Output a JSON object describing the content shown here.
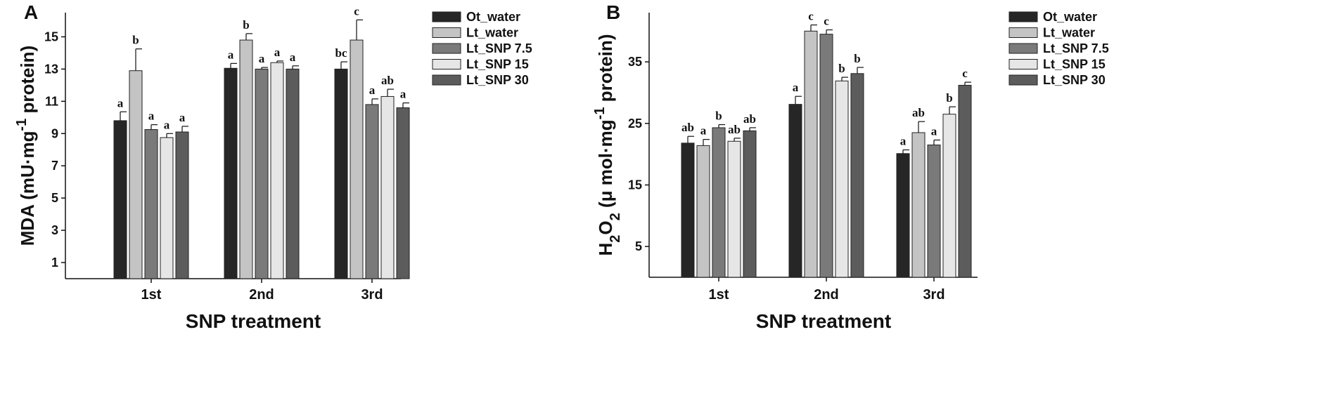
{
  "chart_data": [
    {
      "type": "bar",
      "panel_label": "A",
      "ylabel_parts": {
        "pre": "MDA (mU·mg",
        "sup": "-1",
        "post": " protein)"
      },
      "xlabel": "SNP treatment",
      "ylim": [
        0,
        16.5
      ],
      "yticks": [
        1,
        3,
        5,
        7,
        9,
        11,
        13,
        15
      ],
      "categories": [
        "1st",
        "2nd",
        "3rd"
      ],
      "series": [
        {
          "name": "Ot_water",
          "color": "#262626",
          "values": [
            9.8,
            13.05,
            13.0
          ],
          "errors": [
            0.55,
            0.3,
            0.45
          ],
          "letters": [
            "a",
            "a",
            "bc"
          ]
        },
        {
          "name": "Lt_water",
          "color": "#c4c4c4",
          "values": [
            12.9,
            14.8,
            14.8
          ],
          "errors": [
            1.35,
            0.4,
            1.25
          ],
          "letters": [
            "b",
            "b",
            "c"
          ]
        },
        {
          "name": "Lt_SNP 7.5",
          "color": "#7a7a7a",
          "values": [
            9.25,
            13.0,
            10.8
          ],
          "errors": [
            0.3,
            0.1,
            0.35
          ],
          "letters": [
            "a",
            "a",
            "a"
          ]
        },
        {
          "name": "Lt_SNP 15",
          "color": "#e6e6e6",
          "values": [
            8.75,
            13.4,
            11.3
          ],
          "errors": [
            0.25,
            0.1,
            0.45
          ],
          "letters": [
            "a",
            "a",
            "ab"
          ]
        },
        {
          "name": "Lt_SNP 30",
          "color": "#5c5c5c",
          "values": [
            9.1,
            13.0,
            10.6
          ],
          "errors": [
            0.35,
            0.2,
            0.3
          ],
          "letters": [
            "a",
            "a",
            "a"
          ]
        }
      ]
    },
    {
      "type": "bar",
      "panel_label": "B",
      "ylabel_parts": {
        "pre": "H",
        "sub": "2",
        "mid": "O",
        "sub2": "2",
        "post": " (μ mol·mg",
        "sup": "-1",
        "post2": " protein)"
      },
      "xlabel": "SNP treatment",
      "ylim": [
        0,
        43
      ],
      "yticks": [
        5,
        15,
        25,
        35
      ],
      "categories": [
        "1st",
        "2nd",
        "3rd"
      ],
      "series": [
        {
          "name": "Ot_water",
          "color": "#262626",
          "values": [
            21.8,
            28.1,
            20.1
          ],
          "errors": [
            1.1,
            1.3,
            0.6
          ],
          "letters": [
            "ab",
            "a",
            "a"
          ]
        },
        {
          "name": "Lt_water",
          "color": "#c4c4c4",
          "values": [
            21.4,
            40.0,
            23.5
          ],
          "errors": [
            1.0,
            1.0,
            1.8
          ],
          "letters": [
            "a",
            "c",
            "ab"
          ]
        },
        {
          "name": "Lt_SNP 7.5",
          "color": "#7a7a7a",
          "values": [
            24.3,
            39.5,
            21.5
          ],
          "errors": [
            0.5,
            0.7,
            0.8
          ],
          "letters": [
            "b",
            "c",
            "a"
          ]
        },
        {
          "name": "Lt_SNP 15",
          "color": "#e6e6e6",
          "values": [
            22.1,
            31.9,
            26.5
          ],
          "errors": [
            0.5,
            0.6,
            1.2
          ],
          "letters": [
            "ab",
            "b",
            "b"
          ]
        },
        {
          "name": "Lt_SNP 30",
          "color": "#5c5c5c",
          "values": [
            23.8,
            33.1,
            31.2
          ],
          "errors": [
            0.5,
            1.0,
            0.5
          ],
          "letters": [
            "ab",
            "b",
            "c"
          ]
        }
      ]
    }
  ]
}
